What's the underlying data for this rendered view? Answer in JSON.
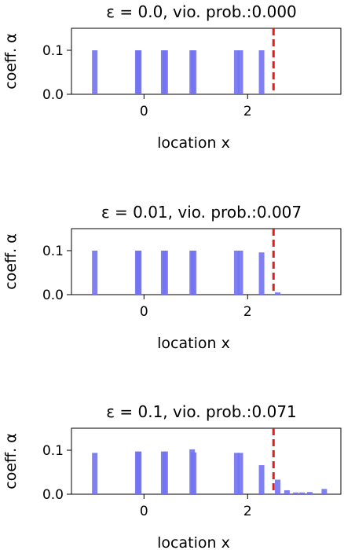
{
  "chart_data": [
    {
      "type": "bar",
      "title": "ε = 0.0, vio. prob.:0.000",
      "xlabel": "location x",
      "ylabel": "coeff. α",
      "xlim": [
        -1.4,
        3.8
      ],
      "ylim": [
        0,
        0.15
      ],
      "xticks": [
        0,
        2
      ],
      "yticks": [
        0.0,
        0.1
      ],
      "xtick_labels": [
        "0",
        "2"
      ],
      "ytick_labels": [
        "0.0",
        "0.1"
      ],
      "threshold_x": 2.5,
      "bar_color": "#7272f2",
      "threshold_color": "#e41a1c",
      "bars": [
        {
          "x": -0.95,
          "value": 0.1
        },
        {
          "x": -0.12,
          "value": 0.1
        },
        {
          "x": -0.1,
          "value": 0.1
        },
        {
          "x": 0.38,
          "value": 0.1
        },
        {
          "x": 0.41,
          "value": 0.1
        },
        {
          "x": 0.93,
          "value": 0.1
        },
        {
          "x": 0.96,
          "value": 0.1
        },
        {
          "x": 1.79,
          "value": 0.1
        },
        {
          "x": 1.86,
          "value": 0.1
        },
        {
          "x": 2.27,
          "value": 0.1
        }
      ]
    },
    {
      "type": "bar",
      "title": "ε = 0.01, vio. prob.:0.007",
      "xlabel": "location x",
      "ylabel": "coeff. α",
      "xlim": [
        -1.4,
        3.8
      ],
      "ylim": [
        0,
        0.15
      ],
      "xticks": [
        0,
        2
      ],
      "yticks": [
        0.0,
        0.1
      ],
      "xtick_labels": [
        "0",
        "2"
      ],
      "ytick_labels": [
        "0.0",
        "0.1"
      ],
      "threshold_x": 2.5,
      "bar_color": "#7272f2",
      "threshold_color": "#e41a1c",
      "bars": [
        {
          "x": -0.95,
          "value": 0.1
        },
        {
          "x": -0.12,
          "value": 0.1
        },
        {
          "x": -0.1,
          "value": 0.1
        },
        {
          "x": 0.38,
          "value": 0.1
        },
        {
          "x": 0.41,
          "value": 0.1
        },
        {
          "x": 0.93,
          "value": 0.1
        },
        {
          "x": 0.96,
          "value": 0.1
        },
        {
          "x": 1.79,
          "value": 0.1
        },
        {
          "x": 1.86,
          "value": 0.1
        },
        {
          "x": 2.27,
          "value": 0.096
        },
        {
          "x": 2.58,
          "value": 0.005
        }
      ]
    },
    {
      "type": "bar",
      "title": "ε = 0.1, vio. prob.:0.071",
      "xlabel": "location x",
      "ylabel": "coeff. α",
      "xlim": [
        -1.4,
        3.8
      ],
      "ylim": [
        0,
        0.15
      ],
      "xticks": [
        0,
        2
      ],
      "yticks": [
        0.0,
        0.1
      ],
      "xtick_labels": [
        "0",
        "2"
      ],
      "ytick_labels": [
        "0.0",
        "0.1"
      ],
      "threshold_x": 2.5,
      "bar_color": "#7272f2",
      "threshold_color": "#e41a1c",
      "bars": [
        {
          "x": -0.95,
          "value": 0.094
        },
        {
          "x": -0.12,
          "value": 0.097
        },
        {
          "x": -0.1,
          "value": 0.097
        },
        {
          "x": 0.38,
          "value": 0.097
        },
        {
          "x": 0.41,
          "value": 0.097
        },
        {
          "x": 0.93,
          "value": 0.102
        },
        {
          "x": 0.96,
          "value": 0.095
        },
        {
          "x": 1.79,
          "value": 0.094
        },
        {
          "x": 1.86,
          "value": 0.094
        },
        {
          "x": 2.27,
          "value": 0.066
        },
        {
          "x": 2.58,
          "value": 0.033
        },
        {
          "x": 2.76,
          "value": 0.009
        },
        {
          "x": 2.93,
          "value": 0.004
        },
        {
          "x": 3.05,
          "value": 0.004
        },
        {
          "x": 3.2,
          "value": 0.005
        },
        {
          "x": 3.48,
          "value": 0.012
        }
      ]
    }
  ]
}
